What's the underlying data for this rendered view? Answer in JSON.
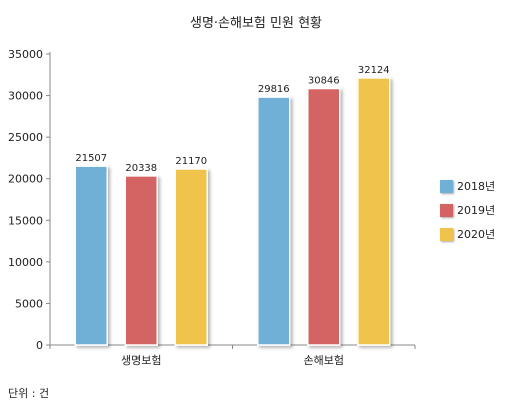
{
  "chart_data": {
    "type": "bar",
    "title": "생명·손해보험 민원 현황",
    "unit_note": "단위 : 건",
    "categories": [
      "생명보험",
      "손해보험"
    ],
    "series": [
      {
        "name": "2018년",
        "color": "#70b0d6",
        "values": [
          21507,
          29816
        ]
      },
      {
        "name": "2019년",
        "color": "#d46464",
        "values": [
          20338,
          30846
        ]
      },
      {
        "name": "2020년",
        "color": "#f0c44c",
        "values": [
          21170,
          32124
        ]
      }
    ],
    "ylim": [
      0,
      35000
    ],
    "yticks": [
      0,
      5000,
      10000,
      15000,
      20000,
      25000,
      30000,
      35000
    ],
    "grid": false,
    "legend_position": "right"
  }
}
